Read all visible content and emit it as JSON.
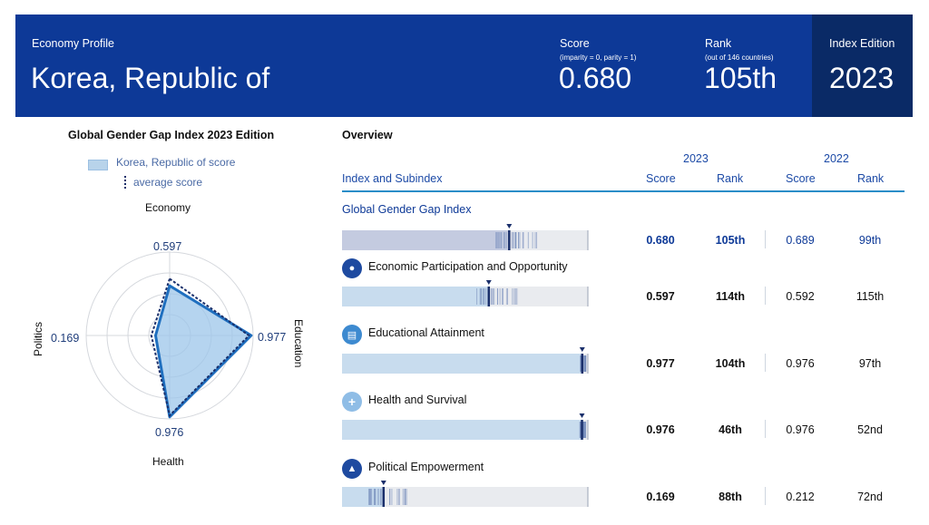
{
  "header": {
    "profile_label": "Economy Profile",
    "country": "Korea, Republic of",
    "score_label": "Score",
    "score_note": "(imparity = 0, parity = 1)",
    "score_value": "0.680",
    "rank_label": "Rank",
    "rank_note": "(out of 146 countries)",
    "rank_value": "105th",
    "edition_label": "Index Edition",
    "edition_value": "2023"
  },
  "radar": {
    "title": "Global Gender Gap Index 2023 Edition",
    "legend_score": "Korea, Republic of score",
    "legend_average": "average score",
    "axes": [
      "Economy",
      "Education",
      "Health",
      "Politics"
    ],
    "values_text": [
      "0.597",
      "0.977",
      "0.976",
      "0.169"
    ]
  },
  "overview": {
    "title": "Overview",
    "year_current": "2023",
    "year_previous": "2022",
    "col_index": "Index and Subindex",
    "col_score": "Score",
    "col_rank": "Rank",
    "rows": [
      {
        "name": "Global Gender Gap Index",
        "score": "0.680",
        "rank": "105th",
        "score_prev": "0.689",
        "rank_prev": "99th"
      },
      {
        "name": "Economic Participation and Opportunity",
        "score": "0.597",
        "rank": "114th",
        "score_prev": "0.592",
        "rank_prev": "115th"
      },
      {
        "name": "Educational Attainment",
        "score": "0.977",
        "rank": "104th",
        "score_prev": "0.976",
        "rank_prev": "97th"
      },
      {
        "name": "Health and Survival",
        "score": "0.976",
        "rank": "46th",
        "score_prev": "0.976",
        "rank_prev": "52nd"
      },
      {
        "name": "Political Empowerment",
        "score": "0.169",
        "rank": "88th",
        "score_prev": "0.212",
        "rank_prev": "72nd"
      }
    ]
  },
  "chart_data": {
    "type": "radar",
    "title": "Global Gender Gap Index 2023 Edition",
    "axes": [
      "Economy",
      "Education",
      "Health",
      "Politics"
    ],
    "series": [
      {
        "name": "Korea, Republic of score",
        "values": [
          0.597,
          0.977,
          0.976,
          0.169
        ]
      },
      {
        "name": "average score",
        "values": [
          0.68,
          0.95,
          0.96,
          0.22
        ]
      }
    ],
    "range": [
      0,
      1
    ]
  },
  "bars": {
    "markers": [
      0.68,
      0.597,
      0.977,
      0.976,
      0.169
    ]
  },
  "colors": {
    "header_bg": "#0d3997",
    "edition_bg": "#0a2a66",
    "accent": "#2a8dc8",
    "fill": "#9cc6ea"
  }
}
